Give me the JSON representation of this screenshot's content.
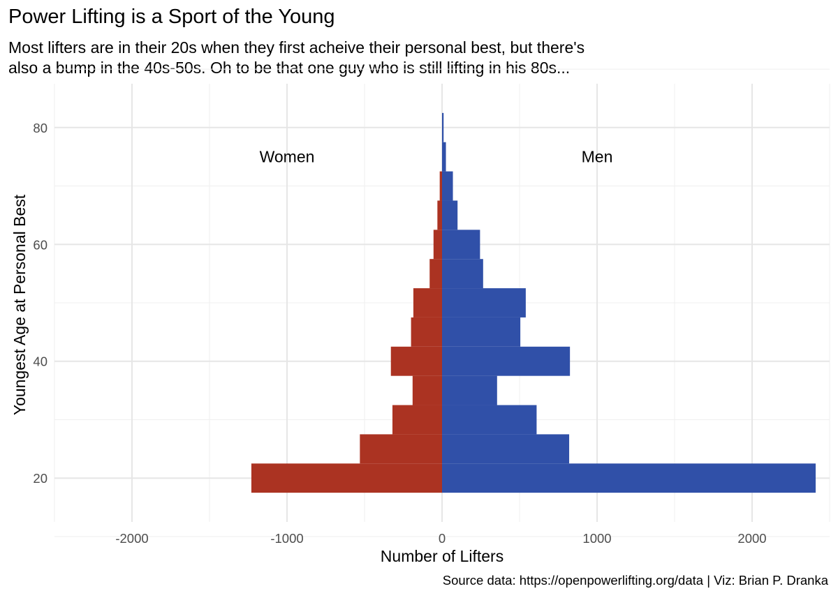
{
  "chart_data": {
    "type": "bar",
    "orientation": "horizontal",
    "title": "Power Lifting is a Sport of the Young",
    "subtitle": [
      "Most lifters are in their 20s when they first acheive their personal best, but there's",
      "also a bump in the 40s-50s. Oh to be that one guy who is still lifting in his 80s..."
    ],
    "xlabel": "Number of Lifters",
    "ylabel": "Youngest Age at Personal Best",
    "caption": "Source data: https://openpowerlifting.org/data | Viz: Brian P. Dranka",
    "xlim": [
      -2500,
      2500
    ],
    "ylim": [
      12.5,
      87.5
    ],
    "x_ticks": [
      -2000,
      -1000,
      0,
      1000,
      2000
    ],
    "x_tick_labels": [
      "-2000",
      "-1000",
      "0",
      "1000",
      "2000"
    ],
    "y_ticks": [
      20,
      40,
      60,
      80
    ],
    "y_tick_labels": [
      "20",
      "40",
      "60",
      "80"
    ],
    "bin_width": 5,
    "age_bins": [
      20,
      25,
      30,
      35,
      40,
      45,
      50,
      55,
      60,
      65,
      70,
      75,
      80
    ],
    "series": [
      {
        "name": "Women",
        "color": "#AB3322",
        "values": [
          -1230,
          -530,
          -320,
          -190,
          -330,
          -200,
          -185,
          -80,
          -55,
          -30,
          -15,
          0,
          0
        ]
      },
      {
        "name": "Men",
        "color": "#3050A8",
        "values": [
          2410,
          820,
          610,
          355,
          825,
          505,
          540,
          265,
          245,
          100,
          70,
          25,
          10
        ]
      }
    ],
    "annotations": [
      {
        "text": "Women",
        "x": -1000,
        "y": 75
      },
      {
        "text": "Men",
        "x": 1000,
        "y": 75
      }
    ],
    "grid": true,
    "legend": "none"
  }
}
